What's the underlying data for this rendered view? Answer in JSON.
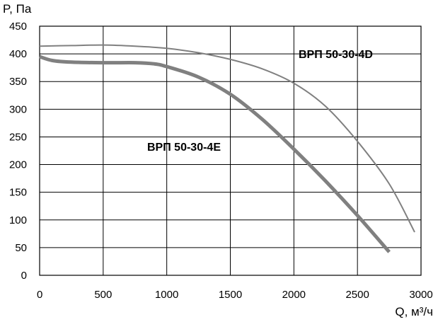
{
  "chart_data": {
    "type": "line",
    "xlabel": "Q, м³/ч",
    "ylabel": "P, Па",
    "xlim": [
      0,
      3000
    ],
    "ylim": [
      0,
      450
    ],
    "xticks": [
      "0",
      "500",
      "1000",
      "1500",
      "2000",
      "2500",
      "3000"
    ],
    "yticks": [
      "0",
      "50",
      "100",
      "150",
      "200",
      "250",
      "300",
      "350",
      "400",
      "450"
    ],
    "grid": true,
    "series": [
      {
        "name": "ВРП 50-30-4D",
        "color": "#808080",
        "x": [
          0,
          250,
          500,
          750,
          1000,
          1250,
          1500,
          1750,
          2000,
          2250,
          2500,
          2750,
          2950
        ],
        "y": [
          414,
          415,
          416,
          414,
          410,
          402,
          390,
          373,
          347,
          305,
          242,
          165,
          78
        ]
      },
      {
        "name": "ВРП 50-30-4E",
        "color": "#808080",
        "x": [
          0,
          100,
          250,
          500,
          750,
          900,
          1000,
          1250,
          1500,
          1750,
          2000,
          2250,
          2500,
          2750
        ],
        "y": [
          395,
          388,
          385,
          384,
          384,
          382,
          377,
          358,
          327,
          282,
          228,
          170,
          108,
          42
        ]
      }
    ]
  }
}
